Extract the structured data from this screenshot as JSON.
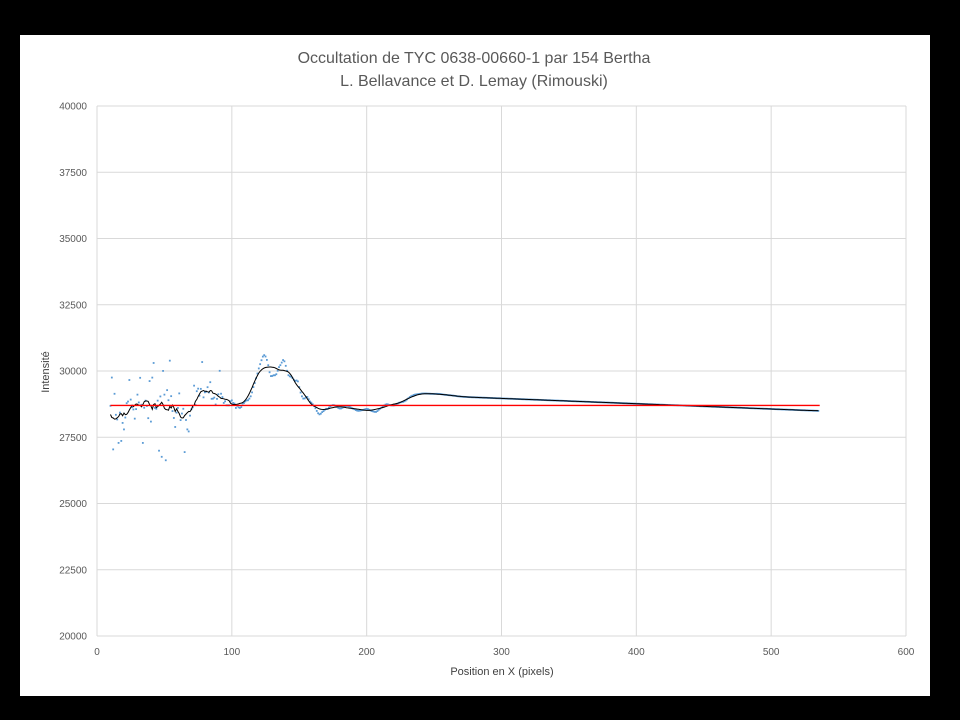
{
  "chart_data": {
    "type": "scatter",
    "title": "Occultation de TYC 0638-00660-1 par 154 Bertha",
    "subtitle": "L. Bellavance et D. Lemay (Rimouski)",
    "xlabel": "Position en X (pixels)",
    "ylabel": "Intensité",
    "xlim": [
      0,
      600
    ],
    "ylim": [
      20000,
      40000
    ],
    "x_ticks": [
      0,
      100,
      200,
      300,
      400,
      500,
      600
    ],
    "y_ticks": [
      20000,
      22500,
      25000,
      27500,
      30000,
      32500,
      35000,
      37500,
      40000
    ],
    "grid": true,
    "series": [
      {
        "role": "raw",
        "style": "points",
        "color": "#5b9bd5",
        "x_start": 10,
        "x_step": 1,
        "values": [
          28686,
          29753,
          27042,
          29140,
          28347,
          28171,
          27287,
          28430,
          27361,
          28041,
          27796,
          28244,
          28785,
          28848,
          29660,
          28922,
          28633,
          28549,
          28202,
          28562,
          29108,
          28813,
          29743,
          28726,
          27286,
          28613,
          28880,
          28681,
          28220,
          29620,
          28091,
          29751,
          30303,
          28606,
          28575,
          28882,
          26993,
          29040,
          26762,
          30003,
          29108,
          26631,
          29278,
          28897,
          30390,
          29051,
          28488,
          28227,
          27888,
          28429,
          28606,
          29155,
          28147,
          28395,
          28574,
          26940,
          28151,
          27796,
          27719,
          28316,
          28556,
          28632,
          29447,
          28722,
          29238,
          29334,
          29069,
          29326,
          30338,
          29006,
          29196,
          29221,
          29389,
          29190,
          29578,
          28951,
          28957,
          28996,
          28735,
          28948,
          29123,
          30007,
          29143,
          29015,
          28795,
          28856,
          28706,
          28706,
          28706,
          28852,
          28891,
          28793,
          28770,
          28606,
          28689,
          28628,
          28609,
          28641,
          28773,
          28793,
          28852,
          28892,
          28896,
          28959,
          29045,
          29193,
          29394,
          29546,
          29724,
          29906,
          30097,
          30258,
          30407,
          30544,
          30598,
          30547,
          30418,
          30219,
          29953,
          29808,
          29812,
          29839,
          29840,
          29879,
          30008,
          30147,
          30220,
          30318,
          30413,
          30366,
          30195,
          30009,
          29841,
          29798,
          29783,
          29731,
          29670,
          29627,
          29642,
          29608,
          29396,
          29187,
          29045,
          28959,
          28964,
          29008,
          29020,
          28938,
          28849,
          28806,
          28745,
          28674,
          28594,
          28493,
          28406,
          28364,
          28390,
          28449,
          28486,
          28539,
          28573,
          28570,
          28619,
          28665,
          28695,
          28712,
          28707,
          28682,
          28646,
          28605,
          28586,
          28588,
          28611,
          28636,
          28661,
          28678,
          28681,
          28664,
          28631,
          28597,
          28575,
          28556,
          28527,
          28504,
          28497,
          28505,
          28516,
          28524,
          28539,
          28559,
          28570,
          28560,
          28536,
          28509,
          28487,
          28471,
          28458,
          28459,
          28489,
          28539,
          28581,
          28617,
          28659,
          28699,
          28734,
          28746,
          28736,
          28718,
          28706,
          28703,
          28700,
          28710,
          28737,
          28772,
          28800,
          28815,
          28825,
          28837,
          28857,
          28887,
          28929,
          28975,
          29017,
          29048,
          29073,
          29095,
          29111,
          29119,
          29124,
          29132,
          29141,
          29147,
          29150,
          29151,
          29150,
          29148,
          29145,
          29142,
          29139,
          29137,
          29137,
          29138,
          29139,
          29137,
          29133,
          29126,
          29118,
          29110,
          29103,
          29097,
          29092,
          29088,
          29084,
          29079,
          29073,
          29065,
          29058,
          29051,
          29044,
          29038,
          29033,
          29029,
          29026,
          29023,
          29020,
          29017,
          29014,
          29012,
          29010,
          29008,
          29006,
          29004,
          29002,
          29000,
          28998,
          28996,
          28994,
          28992,
          28990,
          28988,
          28986,
          28984,
          28982,
          28980,
          28978,
          28976,
          28974,
          28972,
          28970,
          28968,
          28966,
          28964,
          28962,
          28960,
          28958,
          28956,
          28954,
          28952,
          28950,
          28948,
          28946,
          28944,
          28942,
          28940,
          28938,
          28936,
          28934,
          28932,
          28930,
          28928,
          28926,
          28924,
          28922,
          28920,
          28918,
          28916,
          28914,
          28912,
          28910,
          28908,
          28906,
          28904,
          28902,
          28900,
          28898,
          28896,
          28894,
          28892,
          28890,
          28888,
          28886,
          28884,
          28882,
          28880,
          28878,
          28876,
          28874,
          28872,
          28870,
          28868,
          28866,
          28864,
          28862,
          28860,
          28858,
          28856,
          28854,
          28852,
          28850,
          28848,
          28846,
          28844,
          28842,
          28840,
          28838,
          28836,
          28834,
          28832,
          28830,
          28828,
          28826,
          28824,
          28822,
          28820,
          28818,
          28816,
          28814,
          28812,
          28810,
          28808,
          28806,
          28804,
          28802,
          28800,
          28798,
          28796,
          28794,
          28792,
          28790,
          28788,
          28786,
          28784,
          28782,
          28780,
          28778,
          28776,
          28774,
          28772,
          28770,
          28768,
          28766,
          28764,
          28762,
          28760,
          28758,
          28756,
          28754,
          28752,
          28750,
          28748,
          28746,
          28744,
          28742,
          28740,
          28738,
          28736,
          28734,
          28732,
          28730,
          28728,
          28726,
          28724,
          28722,
          28720,
          28718,
          28716,
          28714,
          28712,
          28710,
          28708,
          28706,
          28704,
          28702,
          28700,
          28698,
          28696,
          28694,
          28692,
          28690,
          28688,
          28686,
          28684,
          28682,
          28680,
          28678,
          28676,
          28674,
          28672,
          28670,
          28668,
          28666,
          28664,
          28662,
          28660,
          28658,
          28656,
          28654,
          28652,
          28650,
          28648,
          28646,
          28644,
          28642,
          28640,
          28638,
          28636,
          28634,
          28632,
          28630,
          28628,
          28626,
          28624,
          28622,
          28620,
          28618,
          28616,
          28614,
          28612,
          28610,
          28608,
          28606,
          28604,
          28602,
          28600,
          28598,
          28596,
          28594,
          28592,
          28590,
          28588,
          28586,
          28584,
          28582,
          28580,
          28578,
          28576,
          28574,
          28572,
          28570,
          28568,
          28566,
          28564,
          28562,
          28560,
          28558,
          28556,
          28554,
          28552,
          28550,
          28548,
          28546,
          28544,
          28542,
          28540,
          28538,
          28536,
          28534,
          28532,
          28530,
          28528,
          28526,
          28524,
          28522,
          28520,
          28518,
          28516,
          28514,
          28512,
          28510,
          28508,
          28506,
          28504,
          28502,
          28500,
          28498,
          28496
        ]
      },
      {
        "role": "moving-average",
        "style": "line",
        "color": "#000000",
        "x_start": 10,
        "x_step": 1,
        "values": []
      },
      {
        "role": "mean",
        "style": "line",
        "color": "#ff0000",
        "x": [
          10,
          536
        ],
        "values": [
          28700,
          28700
        ]
      }
    ]
  }
}
